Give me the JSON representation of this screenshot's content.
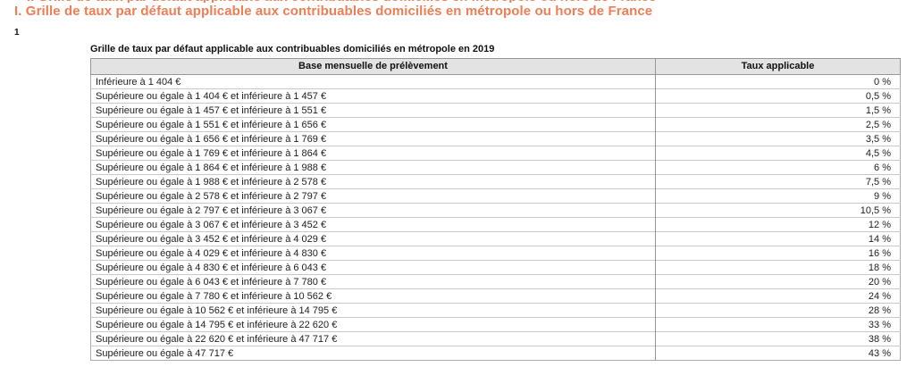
{
  "page": {
    "heading": "I. Grille de taux par défaut applicable aux contribuables domiciliés en métropole ou hors de France",
    "footnote_marker": "1",
    "colors": {
      "heading_orange": "#ee7e55",
      "table_header_bg": "#e3e3e3"
    }
  },
  "table": {
    "title": "Grille de taux par défaut applicable aux contribuables domiciliés en métropole en 2019",
    "columns": [
      "Base mensuelle de prélèvement",
      "Taux applicable"
    ],
    "rows": [
      {
        "base": "Inférieure à 1 404 €",
        "taux": "0 %"
      },
      {
        "base": "Supérieure ou égale à 1 404 € et inférieure à 1 457 €",
        "taux": "0,5 %"
      },
      {
        "base": "Supérieure ou égale à 1 457 € et inférieure à 1 551 €",
        "taux": "1,5 %"
      },
      {
        "base": "Supérieure ou égale à 1 551 € et inférieure à 1 656 €",
        "taux": "2,5 %"
      },
      {
        "base": "Supérieure ou égale à 1 656 € et inférieure à 1 769 €",
        "taux": "3,5 %"
      },
      {
        "base": "Supérieure ou égale à 1 769 € et inférieure à 1 864 €",
        "taux": "4,5 %"
      },
      {
        "base": "Supérieure ou égale à 1 864 € et inférieure à 1 988 €",
        "taux": "6 %"
      },
      {
        "base": "Supérieure ou égale à 1 988 € et inférieure à 2 578 €",
        "taux": "7,5 %"
      },
      {
        "base": "Supérieure ou égale à 2 578 € et inférieure à 2 797 €",
        "taux": "9 %"
      },
      {
        "base": "Supérieure ou égale à 2 797 € et inférieure à 3 067 €",
        "taux": "10,5 %"
      },
      {
        "base": "Supérieure ou égale à 3 067 € et inférieure à 3 452 €",
        "taux": "12 %"
      },
      {
        "base": "Supérieure ou égale à 3 452 € et inférieure à 4 029 €",
        "taux": "14 %"
      },
      {
        "base": "Supérieure ou égale à 4 029 € et inférieure à 4 830 €",
        "taux": "16 %"
      },
      {
        "base": "Supérieure ou égale à 4 830 € et inférieure à 6 043 €",
        "taux": "18 %"
      },
      {
        "base": "Supérieure ou égale à 6 043 € et inférieure à 7 780 €",
        "taux": "20 %"
      },
      {
        "base": "Supérieure ou égale à 7 780 € et inférieure à 10 562 €",
        "taux": "24 %"
      },
      {
        "base": "Supérieure ou égale à 10 562 € et inférieure à 14 795 €",
        "taux": "28 %"
      },
      {
        "base": "Supérieure ou égale à 14 795 € et inférieure à 22 620 €",
        "taux": "33 %"
      },
      {
        "base": "Supérieure ou égale à 22 620 € et inférieure à 47 717 €",
        "taux": "38 %"
      },
      {
        "base": "Supérieure ou égale à 47 717 €",
        "taux": "43 %"
      }
    ]
  }
}
